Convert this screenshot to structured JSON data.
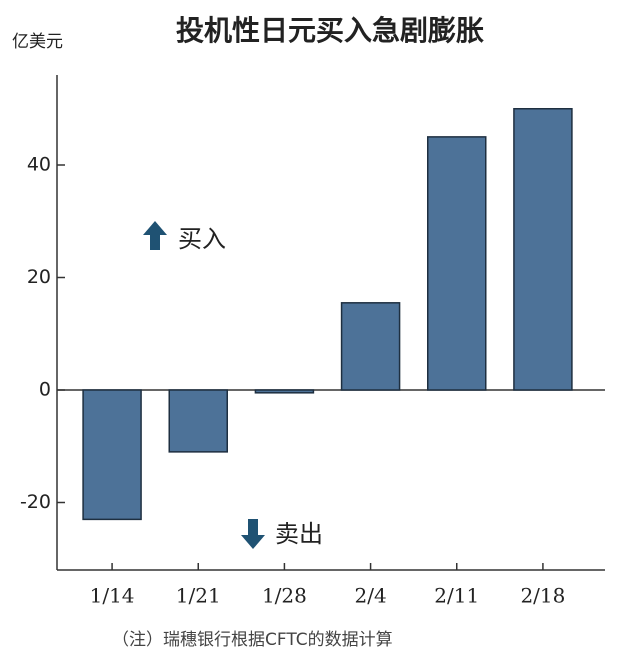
{
  "chart_data": {
    "type": "bar",
    "title": "投机性日元买入急剧膨胀",
    "y_label": "亿美元",
    "categories": [
      "1/14",
      "1/21",
      "1/28",
      "2/4",
      "2/11",
      "2/18"
    ],
    "values": [
      -23,
      -11,
      -0.5,
      15.5,
      45,
      50
    ],
    "color": "#4d7298",
    "ylim": [
      -32,
      56
    ],
    "yticks": [
      -20,
      0,
      20,
      40
    ],
    "annotations": [
      "买入",
      "卖出"
    ],
    "note": "（注）瑞穗银行根据CFTC的数据计算"
  }
}
